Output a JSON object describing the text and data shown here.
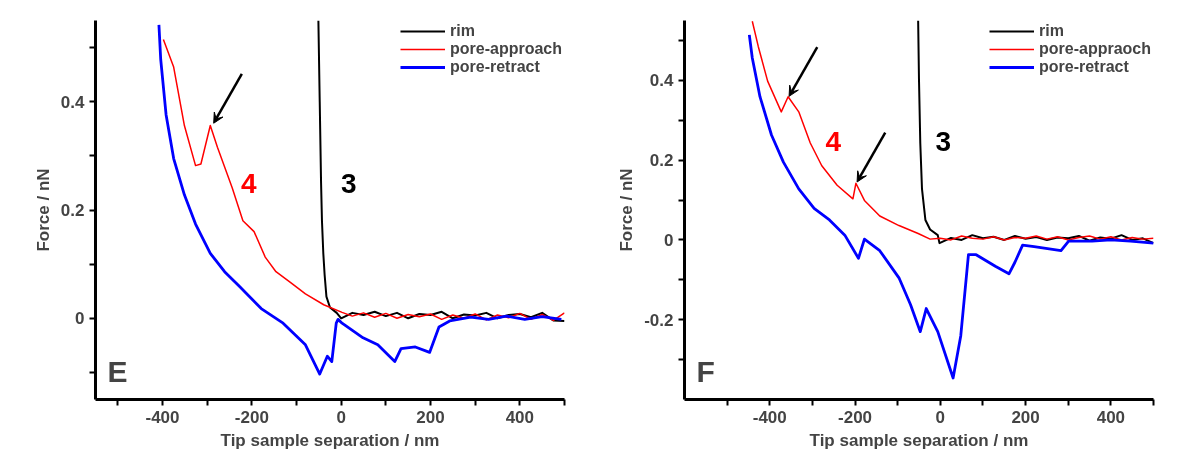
{
  "chart_data": [
    {
      "type": "line",
      "xlabel": "Tip sample separation / nm",
      "ylabel": "Force / nN",
      "legend": "top right",
      "grid": false,
      "marker": "none",
      "line_style": "solid",
      "xlim": [
        -550,
        500
      ],
      "ylim": [
        -0.15,
        0.55
      ],
      "xticks": [
        {
          "value": -500,
          "label": null
        },
        -400,
        {
          "value": -300,
          "label": null
        },
        -200,
        {
          "value": -100,
          "label": null
        },
        0,
        {
          "value": 100,
          "label": null
        },
        200,
        {
          "value": 300,
          "label": null
        },
        400,
        {
          "value": 500,
          "label": null
        }
      ],
      "yticks": [
        {
          "value": -0.1,
          "label": null
        },
        0,
        {
          "value": 0.1,
          "label": null
        },
        0.2,
        {
          "value": 0.3,
          "label": null
        },
        0.4,
        {
          "value": 0.5,
          "label": null
        }
      ],
      "annotations": [
        "E",
        "4",
        "3"
      ],
      "series": [
        {
          "name": "rim",
          "color": "#000000",
          "x": [
            -51,
            -48,
            -45,
            -43,
            -40,
            -37,
            -33,
            -25,
            -10,
            0,
            25,
            50,
            75,
            100,
            125,
            150,
            175,
            200,
            225,
            250,
            275,
            300,
            325,
            350,
            375,
            400,
            425,
            450,
            475,
            500
          ],
          "values": [
            0.55,
            0.4,
            0.25,
            0.18,
            0.12,
            0.08,
            0.04,
            0.02,
            0.01,
            0.0,
            0.01,
            0.006,
            0.012,
            0.004,
            0.01,
            0.0,
            0.008,
            0.006,
            0.012,
            0.0,
            0.007,
            0.005,
            0.01,
            0.0,
            0.006,
            0.008,
            0.002,
            0.01,
            -0.004,
            -0.005
          ]
        },
        {
          "name": "pore-approach",
          "color": "#ff0000",
          "x": [
            -398,
            -375,
            -351,
            -326,
            -314,
            -293,
            -277,
            -244,
            -220,
            -195,
            -170,
            -146,
            -113,
            -80,
            -39,
            2,
            25,
            50,
            75,
            100,
            125,
            150,
            175,
            200,
            225,
            250,
            275,
            300,
            325,
            350,
            375,
            400,
            425,
            450,
            475,
            500
          ],
          "values": [
            0.515,
            0.464,
            0.356,
            0.282,
            0.285,
            0.356,
            0.316,
            0.241,
            0.18,
            0.16,
            0.113,
            0.086,
            0.066,
            0.045,
            0.025,
            0.011,
            0.004,
            0.01,
            0.002,
            0.009,
            0.0,
            0.007,
            0.003,
            0.008,
            -0.002,
            0.006,
            0.0,
            0.008,
            -0.003,
            0.006,
            0.001,
            0.009,
            -0.002,
            0.007,
            -0.004,
            0.01
          ]
        },
        {
          "name": "pore-retract",
          "color": "#0000ff",
          "x": [
            -408,
            -404,
            -392,
            -375,
            -351,
            -326,
            -293,
            -261,
            -228,
            -179,
            -130,
            -80,
            -48,
            -31,
            -21,
            -11,
            -7,
            2,
            49,
            82,
            120,
            134,
            166,
            198,
            219,
            243,
            290,
            330,
            370,
            411,
            450,
            493
          ],
          "values": [
            0.542,
            0.478,
            0.376,
            0.295,
            0.228,
            0.174,
            0.12,
            0.086,
            0.059,
            0.018,
            -0.009,
            -0.049,
            -0.103,
            -0.07,
            -0.08,
            -0.009,
            -0.002,
            -0.009,
            -0.036,
            -0.049,
            -0.08,
            -0.056,
            -0.053,
            -0.063,
            -0.016,
            -0.005,
            0.002,
            -0.002,
            0.004,
            -0.002,
            0.003,
            -0.002
          ]
        }
      ]
    },
    {
      "type": "line",
      "xlabel": "Tip sample separation / nm",
      "ylabel": "Force / nN",
      "legend": "top right",
      "grid": false,
      "marker": "none",
      "line_style": "solid",
      "xlim": [
        -600,
        500
      ],
      "ylim": [
        -0.4,
        0.55
      ],
      "xticks": [
        {
          "value": -500,
          "label": null
        },
        -400,
        {
          "value": -300,
          "label": null
        },
        -200,
        {
          "value": -100,
          "label": null
        },
        0,
        {
          "value": 100,
          "label": null
        },
        200,
        {
          "value": 300,
          "label": null
        },
        400,
        {
          "value": 500,
          "label": null
        }
      ],
      "yticks": [
        {
          "value": -0.3,
          "label": null
        },
        -0.2,
        {
          "value": -0.1,
          "label": null
        },
        0,
        {
          "value": 0.1,
          "label": null
        },
        0.2,
        {
          "value": 0.3,
          "label": null
        },
        0.4,
        {
          "value": 0.5,
          "label": null
        }
      ],
      "annotations": [
        "F",
        "4",
        "3"
      ],
      "series": [
        {
          "name": "rim",
          "color": "#000000",
          "x": [
            -52,
            -50,
            -47,
            -43,
            -35,
            -24,
            -6,
            -2,
            25,
            50,
            75,
            100,
            125,
            150,
            175,
            200,
            225,
            250,
            275,
            300,
            325,
            350,
            375,
            400,
            425,
            450,
            475,
            500
          ],
          "values": [
            0.55,
            0.4,
            0.243,
            0.128,
            0.05,
            0.026,
            0.012,
            -0.008,
            0.005,
            0.0,
            0.012,
            0.004,
            0.008,
            0.0,
            0.01,
            0.003,
            0.007,
            0.0,
            0.006,
            0.004,
            0.01,
            -0.002,
            0.006,
            0.003,
            0.012,
            0.0,
            0.004,
            -0.008
          ]
        },
        {
          "name": "pore-appraoch",
          "color": "#ff0000",
          "x": [
            -441,
            -427,
            -405,
            -373,
            -357,
            -332,
            -305,
            -278,
            -242,
            -205,
            -198,
            -178,
            -142,
            -97,
            -52,
            -24,
            0,
            25,
            50,
            75,
            100,
            125,
            150,
            175,
            200,
            225,
            250,
            275,
            300,
            325,
            350,
            375,
            400,
            425,
            450,
            475,
            500
          ],
          "values": [
            0.548,
            0.485,
            0.398,
            0.321,
            0.359,
            0.321,
            0.243,
            0.186,
            0.137,
            0.103,
            0.142,
            0.099,
            0.06,
            0.036,
            0.016,
            0.002,
            0.004,
            0.0,
            0.01,
            0.004,
            0.002,
            0.008,
            0.0,
            0.006,
            0.004,
            0.01,
            0.002,
            0.008,
            0.0,
            0.006,
            0.01,
            0.002,
            0.008,
            0.0,
            0.006,
            0.002,
            0.004
          ]
        },
        {
          "name": "pore-retract",
          "color": "#0000ff",
          "x": [
            -448,
            -441,
            -423,
            -396,
            -368,
            -332,
            -296,
            -260,
            -224,
            -192,
            -178,
            -142,
            -97,
            -70,
            -47,
            -33,
            -6,
            30,
            48,
            66,
            84,
            129,
            161,
            175,
            193,
            220,
            283,
            301,
            356,
            400,
            446,
            500
          ],
          "values": [
            0.514,
            0.456,
            0.359,
            0.263,
            0.195,
            0.128,
            0.079,
            0.05,
            0.012,
            -0.046,
            0.002,
            -0.027,
            -0.095,
            -0.162,
            -0.23,
            -0.172,
            -0.23,
            -0.346,
            -0.24,
            -0.037,
            -0.037,
            -0.066,
            -0.085,
            -0.056,
            -0.013,
            -0.017,
            -0.027,
            -0.003,
            -0.003,
            0.0,
            -0.003,
            -0.008
          ]
        }
      ]
    }
  ]
}
